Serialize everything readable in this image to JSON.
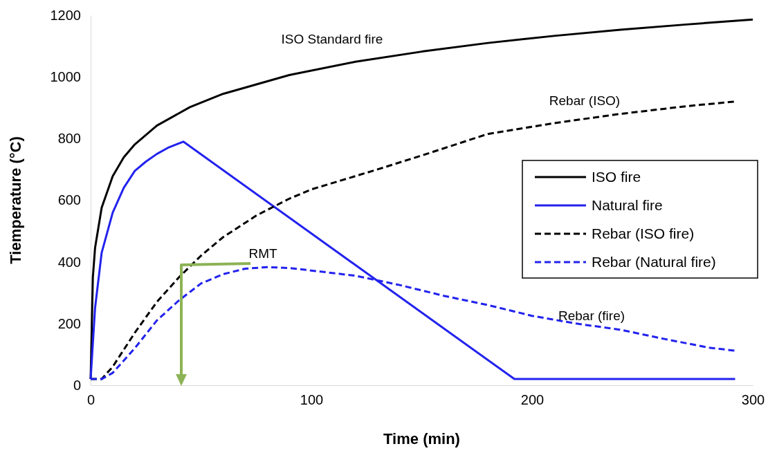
{
  "chart_data": {
    "type": "line",
    "xlabel": "Time (min)",
    "ylabel": "Tiemperature (°C)",
    "xlim": [
      0,
      300
    ],
    "xticks": [
      0,
      100,
      200,
      300
    ],
    "ylim": [
      0,
      1200
    ],
    "yticks": [
      0,
      200,
      400,
      600,
      800,
      1000,
      1200
    ],
    "grid": false,
    "legend": "right",
    "marker": "none",
    "series": [
      {
        "name": "ISO fire",
        "color": "#000000",
        "line_style": "solid",
        "x": [
          0,
          1,
          2,
          5,
          10,
          15,
          20,
          30,
          45,
          60,
          90,
          120,
          150,
          180,
          210,
          240,
          270,
          300
        ],
        "values": [
          20,
          349,
          445,
          576,
          678,
          739,
          781,
          842,
          902,
          945,
          1006,
          1049,
          1082,
          1110,
          1133,
          1153,
          1170,
          1186
        ]
      },
      {
        "name": "Natural fire",
        "color": "#2222ee",
        "line_style": "solid",
        "x": [
          0,
          2,
          5,
          10,
          15,
          20,
          25,
          30,
          35,
          42,
          192,
          292
        ],
        "values": [
          20,
          250,
          430,
          560,
          640,
          695,
          725,
          750,
          770,
          790,
          20,
          20
        ]
      },
      {
        "name": "Rebar (ISO fire)",
        "color": "#000000",
        "line_style": "dashed",
        "x": [
          0,
          5,
          10,
          20,
          30,
          40,
          50,
          60,
          75,
          90,
          100,
          130,
          150,
          180,
          210,
          240,
          270,
          292
        ],
        "values": [
          20,
          20,
          60,
          170,
          270,
          350,
          420,
          480,
          550,
          605,
          635,
          700,
          745,
          815,
          850,
          880,
          905,
          920
        ]
      },
      {
        "name": "Rebar (Natural fire)",
        "color": "#2222ee",
        "line_style": "dashed",
        "x": [
          0,
          5,
          10,
          20,
          30,
          40,
          50,
          60,
          70,
          80,
          90,
          100,
          120,
          140,
          160,
          180,
          200,
          220,
          240,
          260,
          280,
          292
        ],
        "values": [
          20,
          20,
          40,
          120,
          210,
          275,
          330,
          360,
          378,
          383,
          380,
          372,
          355,
          325,
          290,
          260,
          225,
          200,
          180,
          150,
          122,
          112
        ]
      }
    ],
    "annotations": [
      "ISO Standard fire",
      "Rebar (ISO)",
      "RMT",
      "Rebar (fire)"
    ]
  }
}
